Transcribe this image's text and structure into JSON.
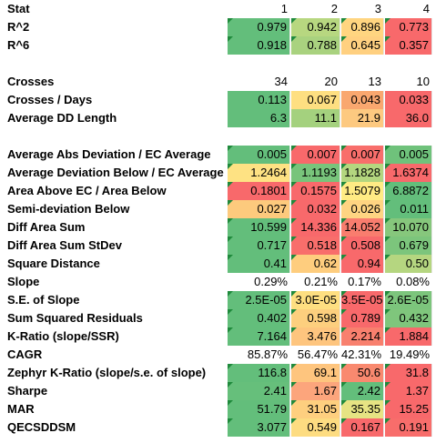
{
  "header": {
    "stat_label": "Stat",
    "columns": [
      "1",
      "2",
      "3",
      "4"
    ]
  },
  "rows": [
    {
      "label": "R^2",
      "values": [
        "0.979",
        "0.942",
        "0.896",
        "0.773"
      ],
      "colors": [
        "#63be7b",
        "#b7d780",
        "#ffd580",
        "#f8696b"
      ],
      "flag": true
    },
    {
      "label": "R^6",
      "values": [
        "0.918",
        "0.788",
        "0.645",
        "0.357"
      ],
      "colors": [
        "#63be7b",
        "#a9d27f",
        "#ffd080",
        "#f8696b"
      ],
      "flag": true
    },
    {
      "spacer": true
    },
    {
      "label": "Crosses",
      "values": [
        "34",
        "20",
        "13",
        "10"
      ],
      "colors": [
        "#ffffff",
        "#ffffff",
        "#ffffff",
        "#ffffff"
      ],
      "flag": false
    },
    {
      "label": "Crosses / Days",
      "values": [
        "0.113",
        "0.067",
        "0.043",
        "0.033"
      ],
      "colors": [
        "#63be7b",
        "#fedf81",
        "#f9a76f",
        "#f8696b"
      ],
      "flag": false
    },
    {
      "label": "Average DD Length",
      "values": [
        "6.3",
        "11.1",
        "21.9",
        "36.0"
      ],
      "colors": [
        "#63be7b",
        "#a4d17e",
        "#fdc980",
        "#f8696b"
      ],
      "flag": false
    },
    {
      "spacer": true
    },
    {
      "label": "Average Abs Deviation  / EC Average",
      "values": [
        "0.005",
        "0.007",
        "0.007",
        "0.005"
      ],
      "colors": [
        "#63be7b",
        "#f8696b",
        "#f86e6b",
        "#6fc27b"
      ],
      "flag": true
    },
    {
      "label": "Average Deviation Below / EC Average",
      "values": [
        "1.2464",
        "1.1193",
        "1.1828",
        "1.6374"
      ],
      "colors": [
        "#fee283",
        "#78c47b",
        "#b4d67f",
        "#f8696b"
      ],
      "flag": true
    },
    {
      "label": "Area Above EC / Area Below",
      "values": [
        "0.1801",
        "0.1575",
        "1.5079",
        "6.8872"
      ],
      "colors": [
        "#f8696b",
        "#f8696b",
        "#ffeb84",
        "#63be7b"
      ],
      "flag": true
    },
    {
      "label": "Semi-deviation Below",
      "values": [
        "0.027",
        "0.032",
        "0.026",
        "0.011"
      ],
      "colors": [
        "#fdca7d",
        "#f8696b",
        "#fed482",
        "#63be7b"
      ],
      "flag": true
    },
    {
      "label": "Diff Area Sum",
      "values": [
        "10.599",
        "14.336",
        "14.052",
        "10.070"
      ],
      "colors": [
        "#63be7b",
        "#f8696b",
        "#f97d6e",
        "#86c77c"
      ],
      "flag": true
    },
    {
      "label": "Diff Area Sum StDev",
      "values": [
        "0.717",
        "0.518",
        "0.508",
        "0.679"
      ],
      "colors": [
        "#63be7b",
        "#f86e6b",
        "#f8696b",
        "#7cc57c"
      ],
      "flag": true
    },
    {
      "label": "Square Distance",
      "values": [
        "0.41",
        "0.62",
        "0.94",
        "0.50"
      ],
      "colors": [
        "#63be7b",
        "#fecd7e",
        "#f8696b",
        "#b5d680"
      ],
      "flag": true
    },
    {
      "label": "Slope",
      "values": [
        "0.29%",
        "0.21%",
        "0.17%",
        "0.08%"
      ],
      "colors": [
        "#ffffff",
        "#ffffff",
        "#ffffff",
        "#ffffff"
      ],
      "flag": true
    },
    {
      "label": "S.E. of Slope",
      "values": [
        "2.5E-05",
        "3.0E-05",
        "3.5E-05",
        "2.6E-05"
      ],
      "colors": [
        "#63be7b",
        "#fedf81",
        "#f8696b",
        "#7cc57c"
      ],
      "flag": true
    },
    {
      "label": "Sum Squared Residuals",
      "values": [
        "0.402",
        "0.598",
        "0.789",
        "0.432"
      ],
      "colors": [
        "#63be7b",
        "#fdcf7e",
        "#f8696b",
        "#7fc67c"
      ],
      "flag": true
    },
    {
      "label": "K-Ratio (slope/SSR)",
      "values": [
        "7.164",
        "3.476",
        "2.214",
        "1.884"
      ],
      "colors": [
        "#63be7b",
        "#fec57e",
        "#f8806e",
        "#f8696b"
      ],
      "flag": true
    },
    {
      "label": "CAGR",
      "values": [
        "85.87%",
        "56.47%",
        "42.31%",
        "19.49%"
      ],
      "colors": [
        "#ffffff",
        "#ffffff",
        "#ffffff",
        "#ffffff"
      ],
      "flag": false
    },
    {
      "label": "Zephyr K-Ratio (slope/s.e. of slope)",
      "values": [
        "116.8",
        "69.1",
        "50.6",
        "31.8"
      ],
      "colors": [
        "#63be7b",
        "#fec57e",
        "#f9896f",
        "#f8696b"
      ],
      "flag": true
    },
    {
      "label": "Sharpe",
      "values": [
        "2.41",
        "1.67",
        "2.42",
        "1.37"
      ],
      "colors": [
        "#66bf7b",
        "#fca57c",
        "#63be7b",
        "#f8696b"
      ],
      "flag": true
    },
    {
      "label": "MAR",
      "values": [
        "51.79",
        "31.05",
        "35.35",
        "15.25"
      ],
      "colors": [
        "#63be7b",
        "#fecf7f",
        "#e6e383",
        "#f8696b"
      ],
      "flag": true
    },
    {
      "label": "QECSDDSM",
      "values": [
        "3.077",
        "0.549",
        "0.167",
        "0.191"
      ],
      "colors": [
        "#63be7b",
        "#fddc81",
        "#f8696b",
        "#f86d6b"
      ],
      "flag": true
    }
  ]
}
